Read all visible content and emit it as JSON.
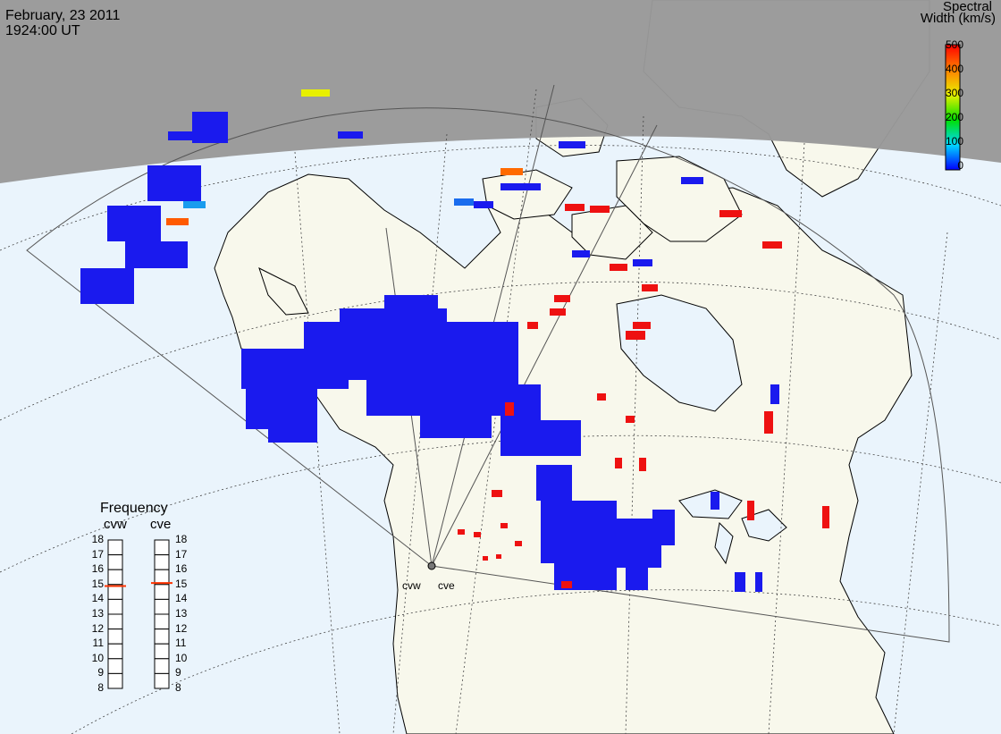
{
  "header": {
    "date": "February, 23 2011",
    "time": "1924:00 UT"
  },
  "colorbar": {
    "title_line1": "Spectral",
    "title_line2": "Width (km/s)",
    "ticks": [
      "500",
      "400",
      "300",
      "200",
      "100",
      "0"
    ],
    "range": [
      0,
      500
    ],
    "colors": [
      "#0000ff",
      "#00d8ff",
      "#00e000",
      "#e8f000",
      "#ff8000",
      "#ff0000"
    ]
  },
  "radars": {
    "west_label": "cvw",
    "east_label": "cve"
  },
  "frequency_panel": {
    "title": "Frequency",
    "radar_labels": [
      "cvw",
      "cve"
    ],
    "ticks": [
      "18",
      "17",
      "16",
      "15",
      "14",
      "13",
      "12",
      "11",
      "10",
      "9",
      "8"
    ],
    "cvw_mhz": 14.9,
    "cve_mhz": 15.1,
    "marker_color": "#ff3300"
  },
  "map_colors": {
    "land": "#f8f8ec",
    "ocean": "#eaf4fc",
    "night": "#999999",
    "coast": "#000000",
    "scatter_low": "#1a1aee",
    "scatter_high": "#ee1111"
  }
}
